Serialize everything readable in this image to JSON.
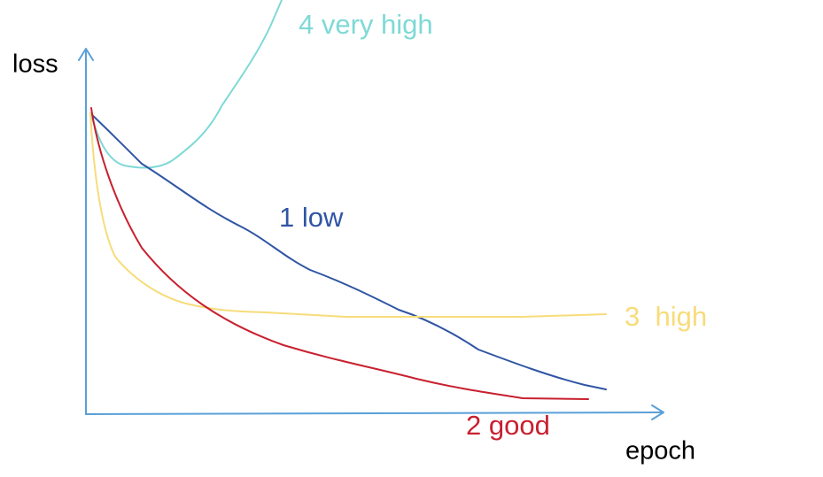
{
  "axes": {
    "y_label": "loss",
    "x_label": "epoch"
  },
  "curves": [
    {
      "label": "4 very high"
    },
    {
      "label": "1 low"
    },
    {
      "label": "3  high"
    },
    {
      "label": "2 good"
    }
  ]
}
